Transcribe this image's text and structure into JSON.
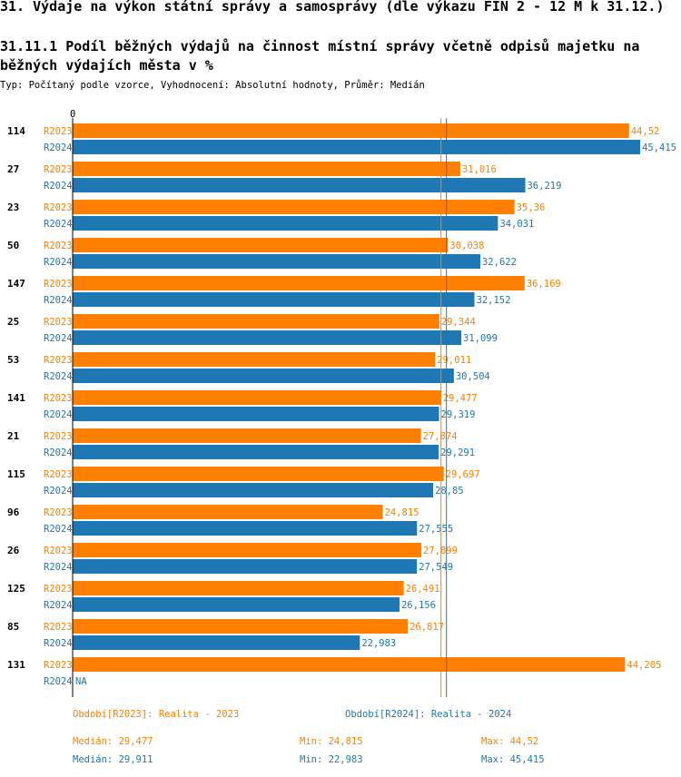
{
  "page": {
    "title": "31. Výdaje na výkon státní správy a samosprávy (dle výkazu FIN 2 - 12 M k 31.12.)",
    "subtitle": "31.11.1 Podíl běžných výdajů na činnost místní správy včetně odpisů majetku na běžných výdajích města v %",
    "type_line": "Typ: Počítaný podle vzorce, Vyhodnocení: Absolutní hodnoty, Průměr: Medián"
  },
  "colors": {
    "R2023": "#ff8000",
    "R2024": "#1f77b4"
  },
  "chart_data": {
    "type": "bar",
    "orientation": "horizontal",
    "axis_zero_label": "0",
    "xlim": [
      0,
      46.5
    ],
    "categories": [
      "114",
      "27",
      "23",
      "50",
      "147",
      "25",
      "53",
      "141",
      "21",
      "115",
      "96",
      "26",
      "125",
      "85",
      "131"
    ],
    "series": [
      {
        "name": "R2023",
        "values": [
          44.52,
          31.016,
          35.36,
          30.038,
          36.169,
          29.344,
          29.011,
          29.477,
          27.874,
          29.697,
          24.815,
          27.899,
          26.491,
          26.817,
          44.205
        ],
        "labels": [
          "44,52",
          "31,016",
          "35,36",
          "30,038",
          "36,169",
          "29,344",
          "29,011",
          "29,477",
          "27,874",
          "29,697",
          "24,815",
          "27,899",
          "26,491",
          "26,817",
          "44,205"
        ],
        "median": 29.477
      },
      {
        "name": "R2024",
        "values": [
          45.415,
          36.219,
          34.031,
          32.622,
          32.152,
          31.099,
          30.504,
          29.319,
          29.291,
          28.85,
          27.555,
          27.549,
          26.156,
          22.983,
          null
        ],
        "labels": [
          "45,415",
          "36,219",
          "34,031",
          "32,622",
          "32,152",
          "31,099",
          "30,504",
          "29,319",
          "29,291",
          "28,85",
          "27,555",
          "27,549",
          "26,156",
          "22,983",
          "NA"
        ],
        "median": 29.911
      }
    ]
  },
  "legend": {
    "r2023": "Období[R2023]: Realita - 2023",
    "r2024": "Období[R2024]: Realita - 2024"
  },
  "stats": {
    "r2023": {
      "median": "Medián: 29,477",
      "min": "Min: 24,815",
      "max": "Max: 44,52"
    },
    "r2024": {
      "median": "Medián: 29,911",
      "min": "Min: 22,983",
      "max": "Max: 45,415"
    }
  }
}
